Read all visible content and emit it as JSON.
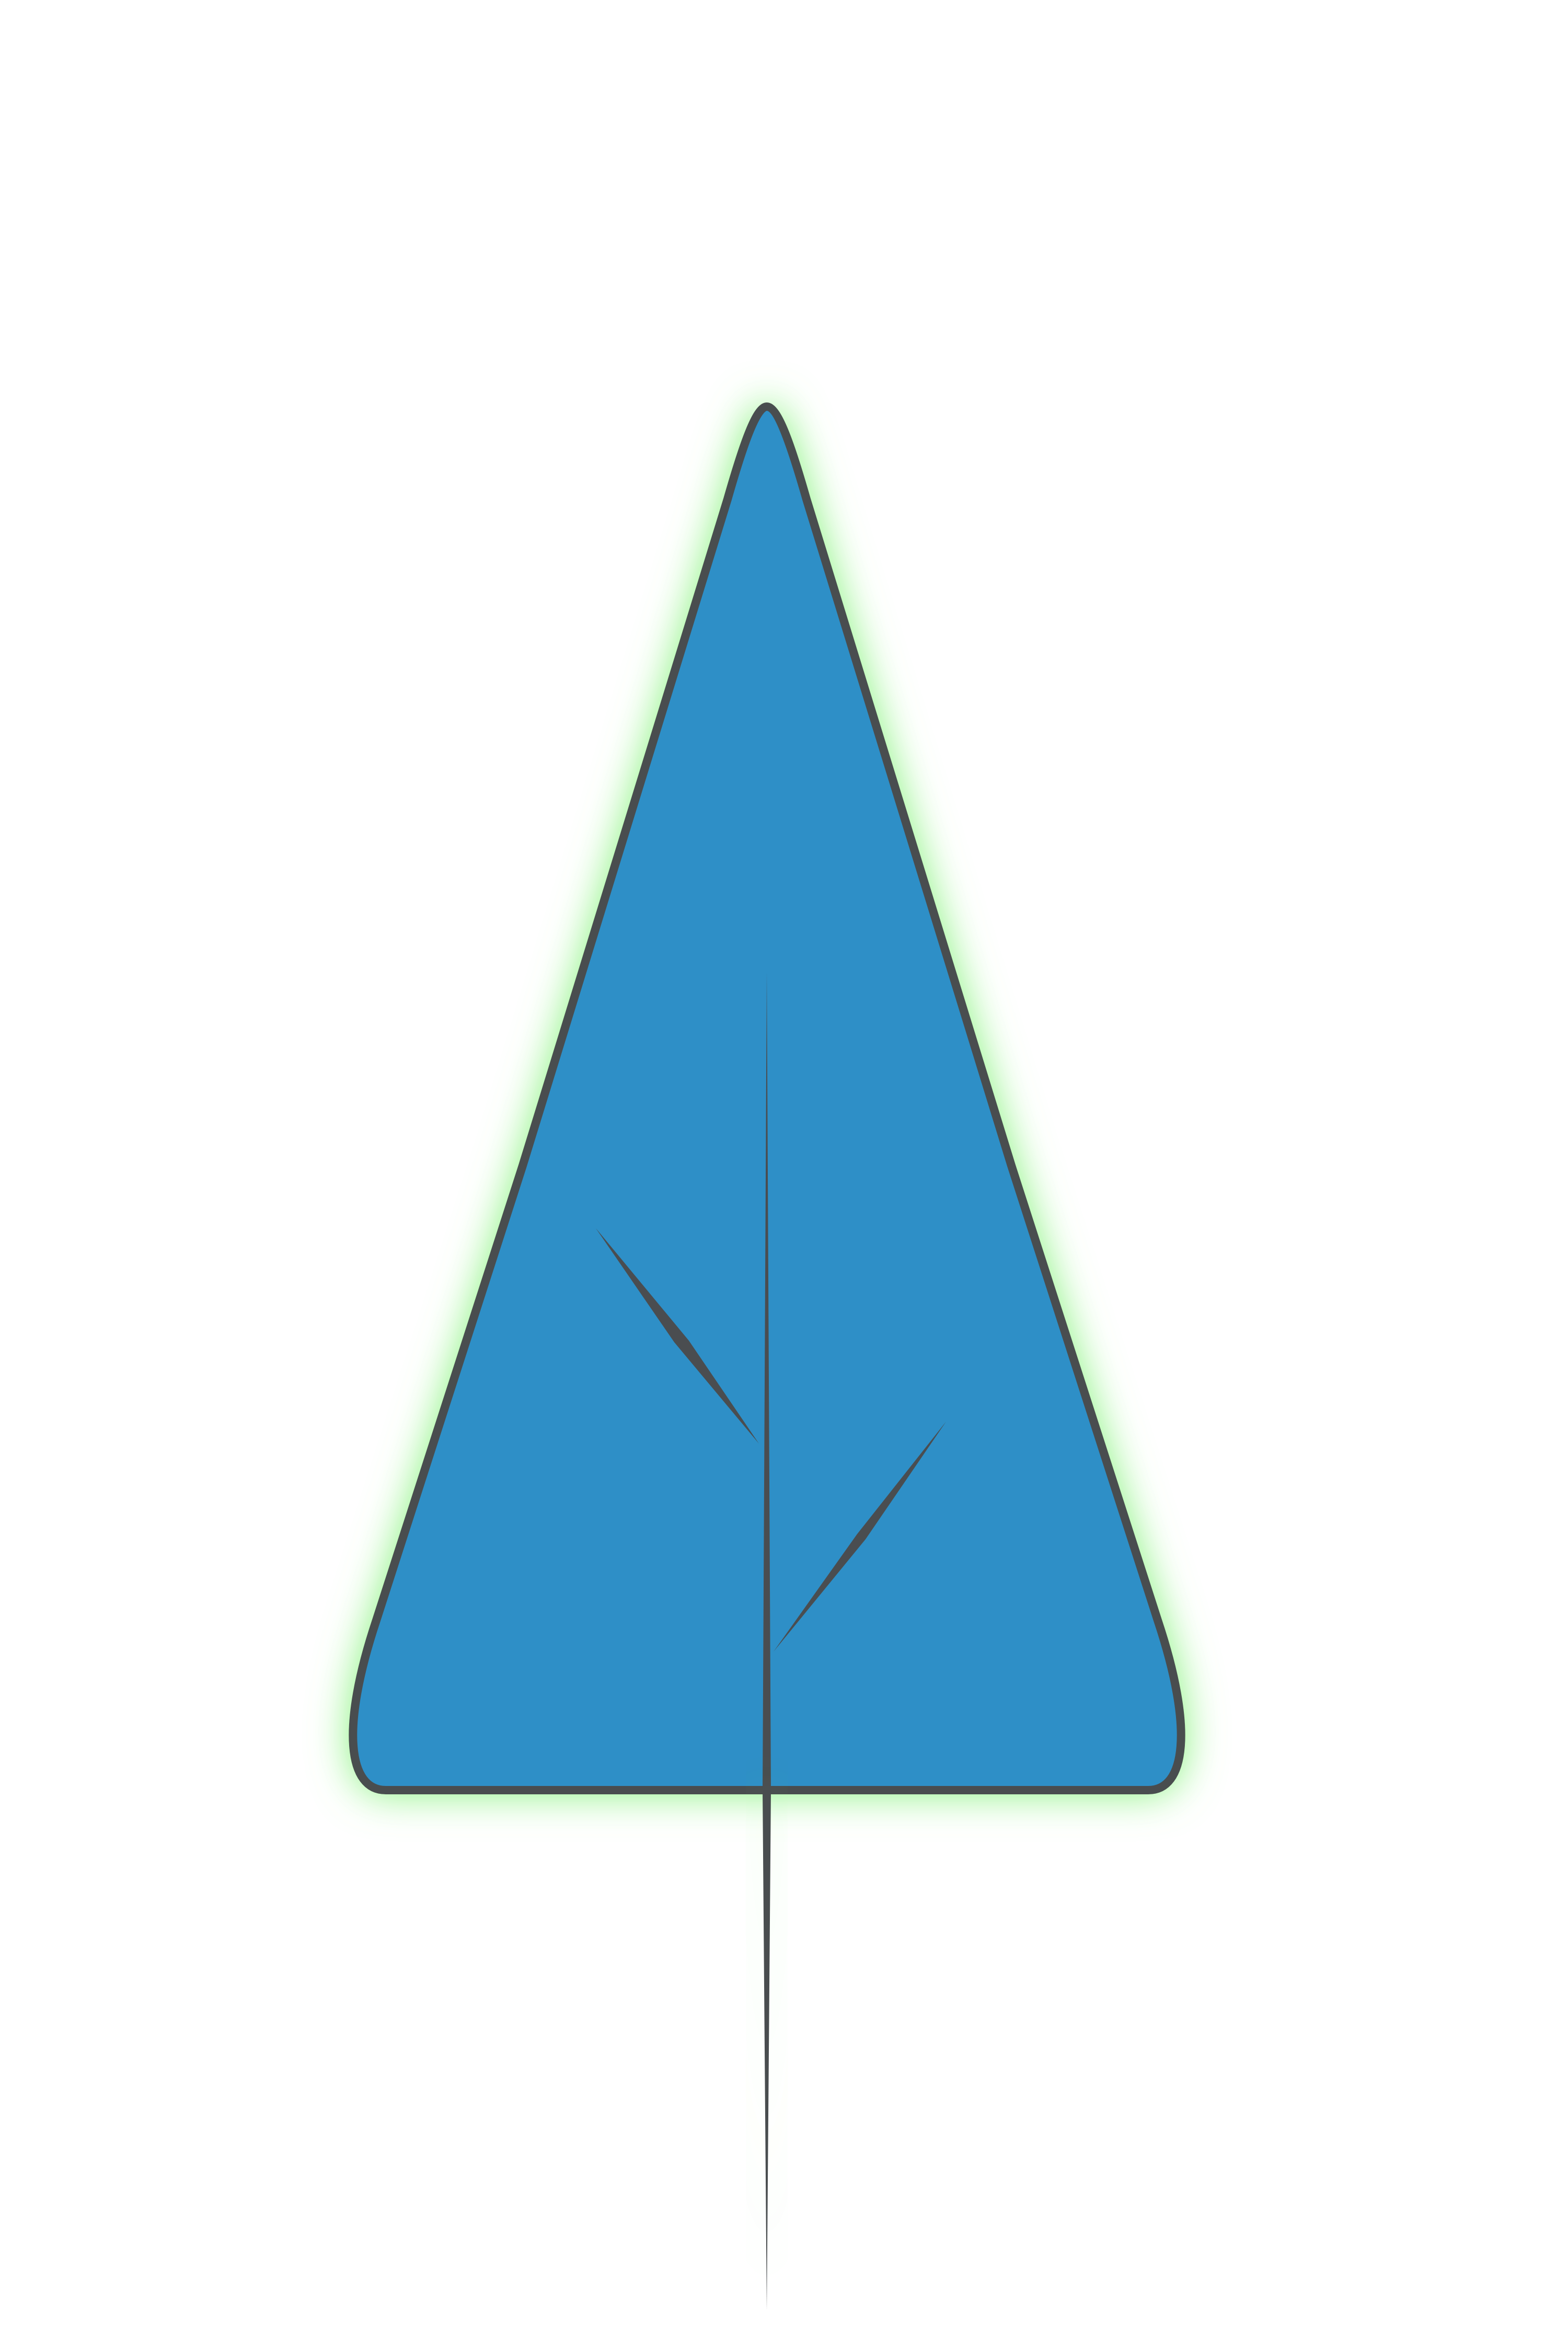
{
  "tree_icon": {
    "kind": "tree-icon",
    "colors": {
      "canopy_fill": "#2E8FC7",
      "outline": "#4A4D50",
      "glow": "#7CF270",
      "background": "#FFFFFF"
    }
  }
}
